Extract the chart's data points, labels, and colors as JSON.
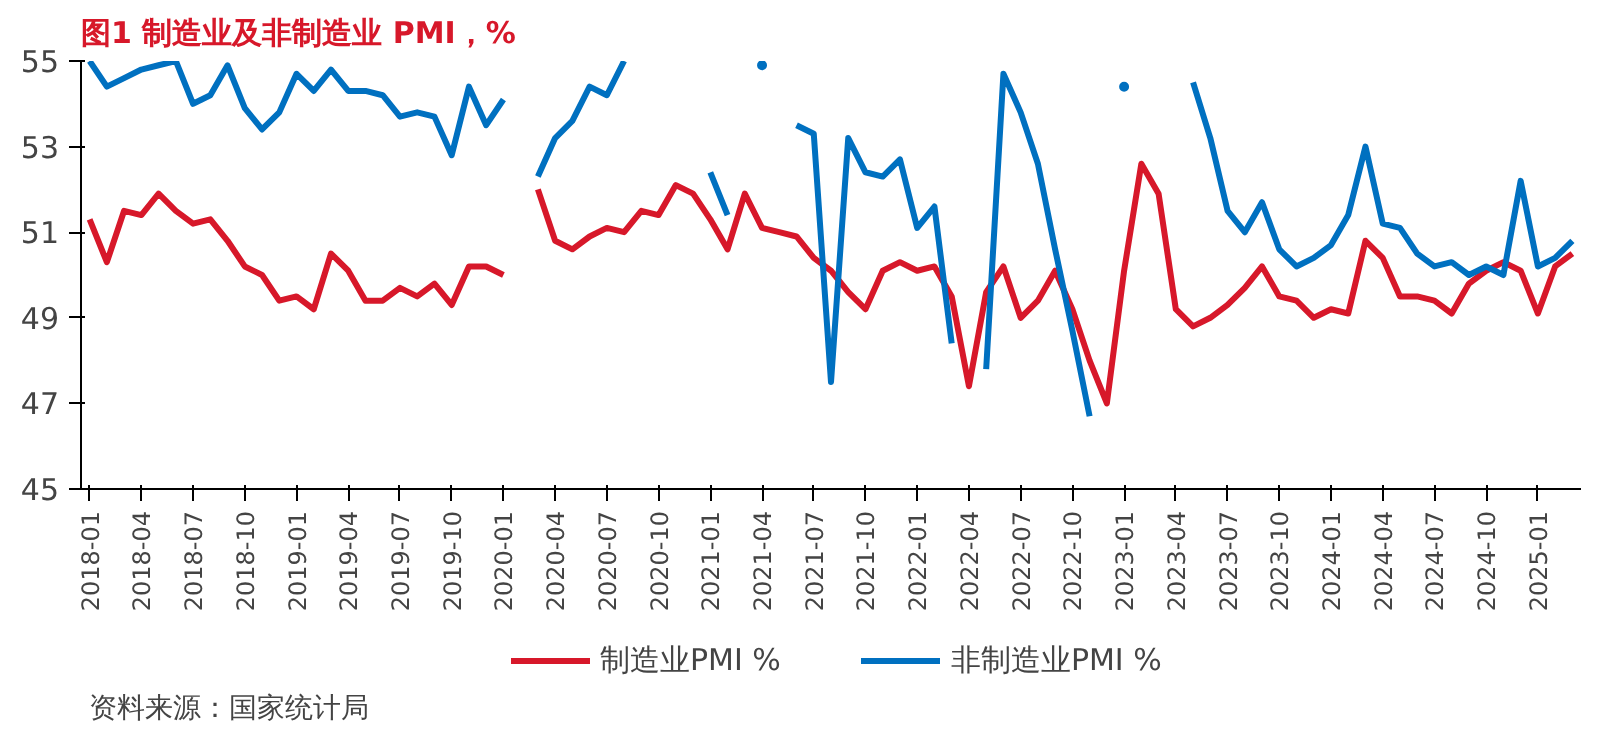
{
  "chart_data": {
    "type": "line",
    "title": "图1  制造业及非制造业 PMI，%",
    "annotations": [
      "资料来源：国家统计局"
    ],
    "categories": [
      "2018-01",
      null,
      null,
      "2018-04",
      null,
      null,
      "2018-07",
      null,
      null,
      "2018-10",
      null,
      null,
      "2019-01",
      null,
      null,
      "2019-04",
      null,
      null,
      "2019-07",
      null,
      null,
      "2019-10",
      null,
      null,
      "2020-01",
      null,
      null,
      "2020-04",
      null,
      null,
      "2020-07",
      null,
      null,
      "2020-10",
      null,
      null,
      "2021-01",
      null,
      null,
      "2021-04",
      null,
      null,
      "2021-07",
      null,
      null,
      "2021-10",
      null,
      null,
      "2022-01",
      null,
      null,
      "2022-04",
      null,
      null,
      "2022-07",
      null,
      null,
      "2022-10",
      null,
      null,
      "2023-01",
      null,
      null,
      "2023-04",
      null,
      null,
      "2023-07",
      null,
      null,
      "2023-10",
      null,
      null,
      "2024-01",
      null,
      null,
      "2024-04",
      null,
      null,
      "2024-07",
      null,
      null,
      "2024-10",
      null,
      null,
      "2025-01",
      null,
      null
    ],
    "series": [
      {
        "name": "制造业PMI %",
        "color": "#d7182a",
        "values": [
          51.3,
          50.3,
          51.5,
          51.4,
          51.9,
          51.5,
          51.2,
          51.3,
          50.8,
          50.2,
          50.0,
          49.4,
          49.5,
          49.2,
          50.5,
          50.1,
          49.4,
          49.4,
          49.7,
          49.5,
          49.8,
          49.3,
          50.2,
          50.2,
          50.0,
          null,
          52.0,
          50.8,
          50.6,
          50.9,
          51.1,
          51.0,
          51.5,
          51.4,
          52.1,
          51.9,
          51.3,
          50.6,
          51.9,
          51.1,
          51.0,
          50.9,
          50.4,
          50.1,
          49.6,
          49.2,
          50.1,
          50.3,
          50.1,
          50.2,
          49.5,
          47.4,
          49.6,
          50.2,
          49.0,
          49.4,
          50.1,
          49.2,
          48.0,
          47.0,
          50.1,
          52.6,
          51.9,
          49.2,
          48.8,
          49.0,
          49.3,
          49.7,
          50.2,
          49.5,
          49.4,
          49.0,
          49.2,
          49.1,
          50.8,
          50.4,
          49.5,
          49.5,
          49.4,
          49.1,
          49.8,
          50.1,
          50.3,
          50.1,
          49.1,
          50.2,
          50.5
        ]
      },
      {
        "name": "非制造业PMI %",
        "color": "#0070c0",
        "values": [
          55.0,
          54.4,
          54.6,
          54.8,
          54.9,
          55.0,
          54.0,
          54.2,
          54.9,
          53.9,
          53.4,
          53.8,
          54.7,
          54.3,
          54.8,
          54.3,
          54.3,
          54.2,
          53.7,
          53.8,
          53.7,
          52.8,
          54.4,
          53.5,
          54.1,
          null,
          52.3,
          53.2,
          53.6,
          54.4,
          54.2,
          55.0,
          null,
          null,
          null,
          null,
          52.4,
          51.4,
          null,
          54.9,
          null,
          53.5,
          53.3,
          47.5,
          53.2,
          52.4,
          52.3,
          52.7,
          51.1,
          51.6,
          48.4,
          null,
          47.8,
          54.7,
          53.8,
          52.6,
          50.6,
          48.7,
          46.7,
          null,
          54.4,
          null,
          null,
          null,
          54.5,
          53.2,
          51.5,
          51.0,
          51.7,
          50.6,
          50.2,
          50.4,
          50.7,
          51.4,
          53.0,
          51.2,
          51.1,
          50.5,
          50.2,
          50.3,
          50.0,
          50.2,
          50.0,
          52.2,
          50.2,
          50.4,
          50.8
        ]
      }
    ],
    "ylim": [
      45,
      55
    ],
    "yticks": [
      45,
      47,
      49,
      51,
      53,
      55
    ],
    "grid": false,
    "legend": "bottom",
    "line_style": "solid",
    "marker": "none"
  }
}
